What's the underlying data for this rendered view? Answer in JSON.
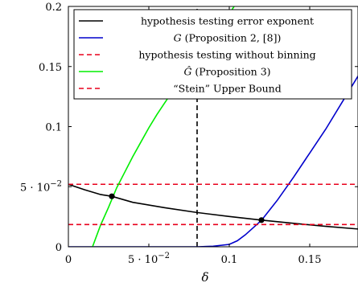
{
  "chart_data": {
    "type": "line",
    "xlabel": "δ",
    "ylabel": "",
    "xlim": [
      0,
      0.18
    ],
    "ylim": [
      0,
      0.2
    ],
    "x_ticks": [
      {
        "value": 0,
        "label": "0"
      },
      {
        "value": 0.05,
        "label": "5 · 10⁻²"
      },
      {
        "value": 0.1,
        "label": "0.1"
      },
      {
        "value": 0.15,
        "label": "0.15"
      }
    ],
    "y_ticks": [
      {
        "value": 0,
        "label": "0"
      },
      {
        "value": 0.05,
        "label": "5 · 10⁻²"
      },
      {
        "value": 0.1,
        "label": "0.1"
      },
      {
        "value": 0.15,
        "label": "0.15"
      },
      {
        "value": 0.2,
        "label": "0.2"
      }
    ],
    "legend_position": "top-right",
    "series": [
      {
        "name": "hypothesis testing error exponent",
        "color": "#000000",
        "dash": "solid",
        "x": [
          0,
          0.01,
          0.02,
          0.027,
          0.04,
          0.06,
          0.08,
          0.1,
          0.12,
          0.14,
          0.16,
          0.18
        ],
        "y": [
          0.052,
          0.0475,
          0.0435,
          0.042,
          0.037,
          0.0325,
          0.0285,
          0.0252,
          0.0222,
          0.0195,
          0.017,
          0.0148
        ]
      },
      {
        "name": "G (Proposition 2, [8])",
        "color": "#0000cc",
        "dash": "solid",
        "x": [
          0,
          0.08,
          0.09,
          0.1,
          0.105,
          0.11,
          0.115,
          0.12,
          0.13,
          0.14,
          0.15,
          0.16,
          0.17,
          0.18
        ],
        "y": [
          0,
          0,
          0.0005,
          0.002,
          0.005,
          0.01,
          0.016,
          0.022,
          0.039,
          0.058,
          0.078,
          0.098,
          0.12,
          0.142
        ]
      },
      {
        "name": "hypothesis testing without binning",
        "color": "#e8001c",
        "dash": "dashed",
        "x": [
          0,
          0.18
        ],
        "y": [
          0.052,
          0.052
        ]
      },
      {
        "name": "Ĝ (Proposition 3)",
        "color": "#00ee00",
        "dash": "solid",
        "x": [
          0.015,
          0.02,
          0.025,
          0.03,
          0.035,
          0.04,
          0.045,
          0.05,
          0.055,
          0.06,
          0.065,
          0.07,
          0.075,
          0.08,
          0.085,
          0.09,
          0.095,
          0.1,
          0.103
        ],
        "y": [
          0,
          0.018,
          0.033,
          0.049,
          0.062,
          0.075,
          0.087,
          0.099,
          0.11,
          0.12,
          0.13,
          0.14,
          0.149,
          0.158,
          0.167,
          0.176,
          0.184,
          0.194,
          0.2
        ]
      },
      {
        "name": "“Stein” Upper Bound",
        "color": "#e8001c",
        "dash": "dashed",
        "x": [
          0,
          0.18
        ],
        "y": [
          0.0185,
          0.0185
        ]
      }
    ],
    "vertical_lines": [
      {
        "x": 0.08,
        "color": "#000000",
        "dash": "dashed"
      }
    ],
    "markers": [
      {
        "x": 0.027,
        "y": 0.042,
        "color": "#000000"
      },
      {
        "x": 0.12,
        "y": 0.0222,
        "color": "#000000"
      }
    ]
  }
}
